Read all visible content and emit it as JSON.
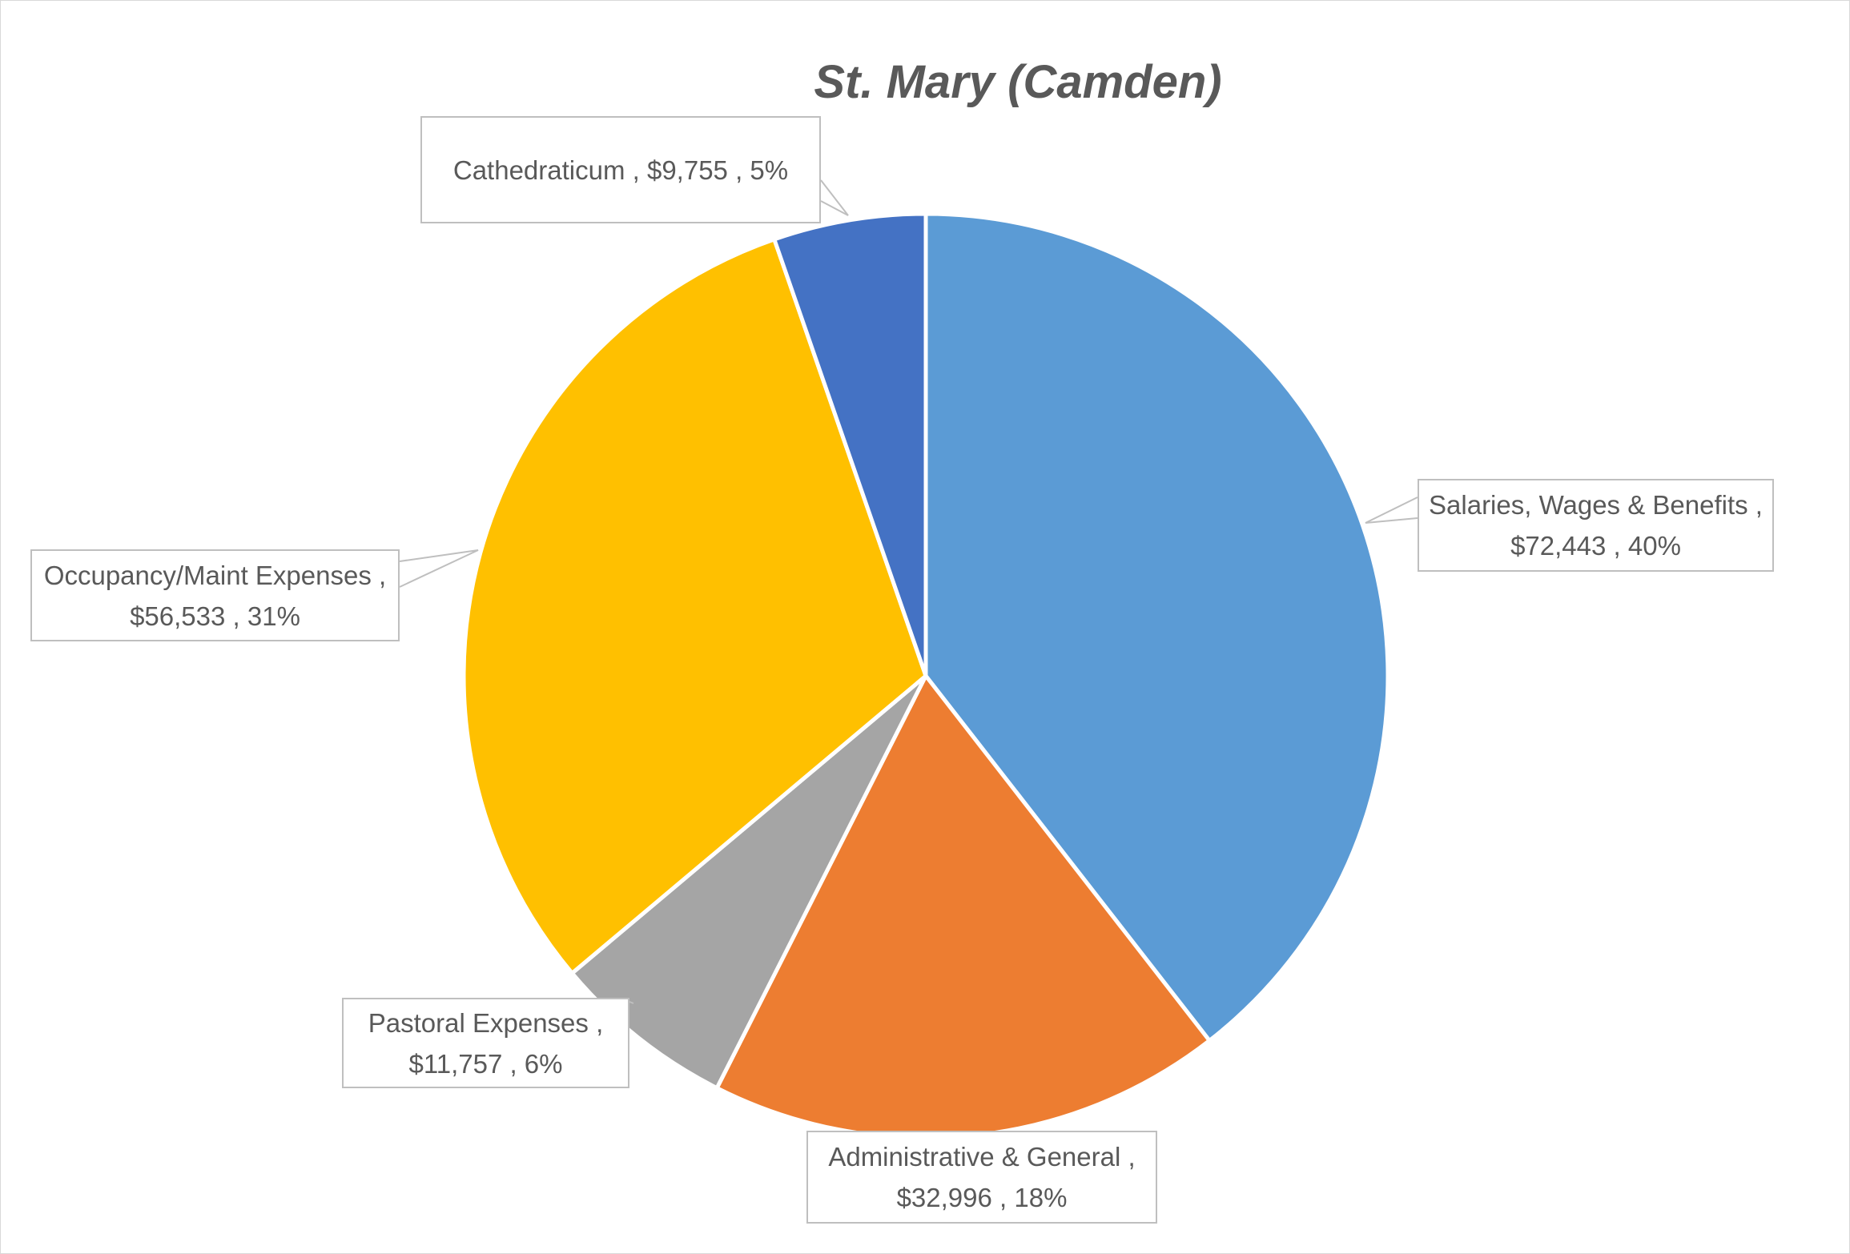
{
  "chart_data": {
    "type": "pie",
    "title": "St. Mary (Camden)",
    "start": "12 o'clock, clockwise",
    "slices": [
      {
        "label": "Salaries, Wages & Benefits",
        "value": 72443,
        "value_text": "$72,443",
        "percent_text": "40%",
        "color": "#5B9BD5"
      },
      {
        "label": "Administrative & General",
        "value": 32996,
        "value_text": "$32,996",
        "percent_text": "18%",
        "color": "#ED7D31"
      },
      {
        "label": "Pastoral Expenses",
        "value": 11757,
        "value_text": "$11,757",
        "percent_text": "6%",
        "color": "#A5A5A5"
      },
      {
        "label": "Occupancy/Maint Expenses",
        "value": 56533,
        "value_text": "$56,533",
        "percent_text": "31%",
        "color": "#FFC000"
      },
      {
        "label": "Cathedraticum",
        "value": 9755,
        "value_text": "$9,755",
        "percent_text": "5%",
        "color": "#4472C4"
      }
    ],
    "data_labels": [
      "Salaries, Wages & Benefits ,  $72,443 , 40%",
      "Administrative & General ,  $32,996 , 18%",
      "Pastoral Expenses ,  $11,757 , 6%",
      "Occupancy/Maint Expenses ,  $56,533 , 31%",
      "Cathedraticum ,  $9,755 , 5%"
    ]
  }
}
